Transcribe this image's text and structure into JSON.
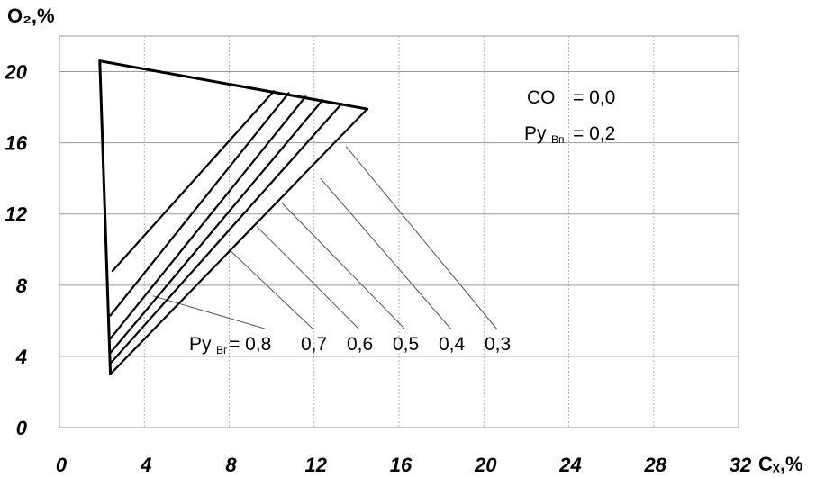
{
  "chart_data": {
    "type": "line",
    "title": "",
    "xlabel": "Cₓ,%",
    "ylabel": "O₂,%",
    "xlim": [
      0,
      32
    ],
    "ylim": [
      0,
      22
    ],
    "x_ticks": [
      "0",
      "4",
      "8",
      "12",
      "16",
      "20",
      "24",
      "28",
      "32"
    ],
    "y_ticks": [
      "0",
      "4",
      "8",
      "12",
      "16",
      "20"
    ],
    "grid": true,
    "outer_lines": [
      {
        "name": "upper",
        "points": [
          [
            1.9,
            20.6
          ],
          [
            14.5,
            17.9
          ]
        ]
      },
      {
        "name": "left",
        "points": [
          [
            1.9,
            20.6
          ],
          [
            2.4,
            3.0
          ]
        ]
      }
    ],
    "series": [
      {
        "name": "0,8",
        "points": [
          [
            2.5,
            8.8
          ],
          [
            10.1,
            18.9
          ]
        ]
      },
      {
        "name": "0,7",
        "points": [
          [
            2.4,
            6.3
          ],
          [
            10.8,
            18.8
          ]
        ]
      },
      {
        "name": "0,6",
        "points": [
          [
            2.4,
            5.0
          ],
          [
            11.6,
            18.6
          ]
        ]
      },
      {
        "name": "0,5",
        "points": [
          [
            2.4,
            4.2
          ],
          [
            12.4,
            18.4
          ]
        ]
      },
      {
        "name": "0,4",
        "points": [
          [
            2.4,
            3.6
          ],
          [
            13.3,
            18.2
          ]
        ]
      },
      {
        "name": "0,3",
        "points": [
          [
            2.4,
            3.0
          ],
          [
            14.5,
            17.9
          ]
        ]
      }
    ],
    "leaders": [
      {
        "label": "0,8",
        "from": [
          4.4,
          7.4
        ]
      },
      {
        "label": "0,7",
        "from": [
          8.0,
          10.0
        ]
      },
      {
        "label": "0,6",
        "from": [
          9.3,
          11.3
        ]
      },
      {
        "label": "0,5",
        "from": [
          10.5,
          12.6
        ]
      },
      {
        "label": "0,4",
        "from": [
          12.3,
          14.0
        ]
      },
      {
        "label": "0,3",
        "from": [
          13.5,
          15.8
        ]
      }
    ],
    "annotations": {
      "co_label": "CO",
      "co_value": "= 0,0",
      "ruvp_main": "Ру",
      "ruvp_sub": "Вп",
      "ruvp_value": "= 0,2",
      "ruvg_main": "Ру",
      "ruvg_sub": "Вг",
      "ruvg_eq": "= 0,8",
      "ruvg_values": [
        "0,7",
        "0,6",
        "0,5",
        "0,4",
        "0,3"
      ]
    }
  }
}
